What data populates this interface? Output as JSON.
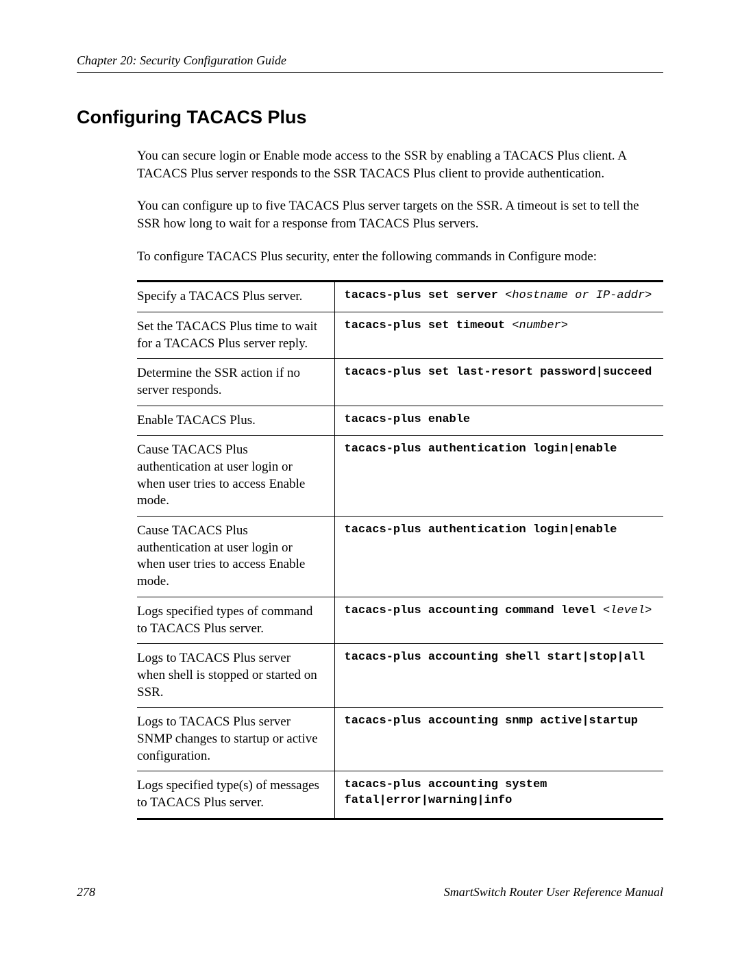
{
  "header": {
    "chapter_line": "Chapter 20: Security Configuration Guide"
  },
  "heading": "Configuring TACACS Plus",
  "paragraphs": {
    "p1": "You can secure login or Enable mode access to the SSR by enabling a TACACS Plus client. A TACACS Plus server responds to the SSR TACACS Plus client to provide authentication.",
    "p2": "You can configure up to five TACACS Plus server targets on the SSR. A timeout is set to tell the SSR how long to wait for a response from TACACS Plus servers.",
    "p3": "To configure TACACS Plus security, enter the following commands in Configure mode:"
  },
  "table": {
    "rows": [
      {
        "desc": "Specify a TACACS Plus server.",
        "cmd": "tacacs-plus set server ",
        "arg": "<hostname or IP-addr>",
        "tail": ""
      },
      {
        "desc": "Set the TACACS Plus time to wait for a TACACS Plus server reply.",
        "cmd": "tacacs-plus set timeout ",
        "arg": "<number>",
        "tail": ""
      },
      {
        "desc": "Determine the SSR action if no server responds.",
        "cmd": "tacacs-plus set last-resort password|succeed",
        "arg": "",
        "tail": ""
      },
      {
        "desc": "Enable TACACS Plus.",
        "cmd": "tacacs-plus enable",
        "arg": "",
        "tail": ""
      },
      {
        "desc": "Cause TACACS Plus authentication at user login or when user tries to access Enable mode.",
        "cmd": "tacacs-plus authentication login|enable",
        "arg": "",
        "tail": ""
      },
      {
        "desc": "Cause TACACS Plus authentication at user login or when user tries to access Enable mode.",
        "cmd": "tacacs-plus authentication login|enable",
        "arg": "",
        "tail": ""
      },
      {
        "desc": "Logs specified types of command to TACACS Plus server.",
        "cmd": "tacacs-plus accounting command level ",
        "arg": "<level>",
        "tail": ""
      },
      {
        "desc": "Logs to TACACS Plus server when shell is stopped or started on SSR.",
        "cmd": "tacacs-plus accounting shell start|stop|all",
        "arg": "",
        "tail": ""
      },
      {
        "desc": "Logs to TACACS Plus server SNMP changes to startup or active configuration.",
        "cmd": "tacacs-plus accounting snmp active|startup",
        "arg": "",
        "tail": ""
      },
      {
        "desc": "Logs specified type(s) of messages to TACACS Plus server.",
        "cmd": "tacacs-plus accounting system fatal|error|warning|info",
        "arg": "",
        "tail": ""
      }
    ]
  },
  "footer": {
    "page_number": "278",
    "manual_title": "SmartSwitch Router User Reference Manual"
  }
}
